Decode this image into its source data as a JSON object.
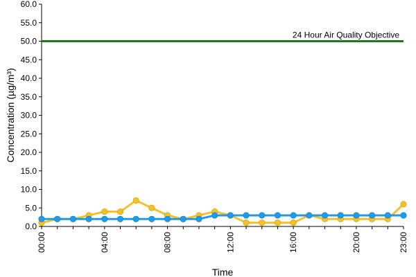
{
  "chart_data": {
    "type": "line",
    "title": "",
    "xlabel": "Time",
    "ylabel": "Concentration (µg/m³)",
    "x": [
      "00:00",
      "01:00",
      "02:00",
      "03:00",
      "04:00",
      "05:00",
      "06:00",
      "07:00",
      "08:00",
      "09:00",
      "10:00",
      "11:00",
      "12:00",
      "13:00",
      "14:00",
      "15:00",
      "16:00",
      "17:00",
      "18:00",
      "19:00",
      "20:00",
      "21:00",
      "22:00",
      "23:00"
    ],
    "x_tick_labels": [
      "00:00",
      "04:00",
      "08:00",
      "12:00",
      "16:00",
      "20:00",
      "23:00"
    ],
    "y_tick_labels": [
      "0.0",
      "5.0",
      "10.0",
      "15.0",
      "20.0",
      "25.0",
      "30.0",
      "35.0",
      "40.0",
      "45.0",
      "50.0",
      "55.0",
      "60.0"
    ],
    "ylim": [
      0,
      60
    ],
    "grid": false,
    "series": [
      {
        "color": "#f2c12e",
        "values": [
          1,
          2,
          2,
          3,
          4,
          4,
          7,
          5,
          3,
          2,
          3,
          4,
          3,
          1,
          1,
          1,
          1,
          3,
          2,
          2,
          2,
          2,
          2,
          6
        ]
      },
      {
        "color": "#1f9be8",
        "values": [
          2,
          2,
          2,
          2,
          2,
          2,
          2,
          2,
          2,
          2,
          2,
          3,
          3,
          3,
          3,
          3,
          3,
          3,
          3,
          3,
          3,
          3,
          3,
          3
        ]
      }
    ],
    "reference_line": {
      "label": "24 Hour Air Quality Objective",
      "value": 50,
      "color": "#1a7a1a"
    }
  }
}
